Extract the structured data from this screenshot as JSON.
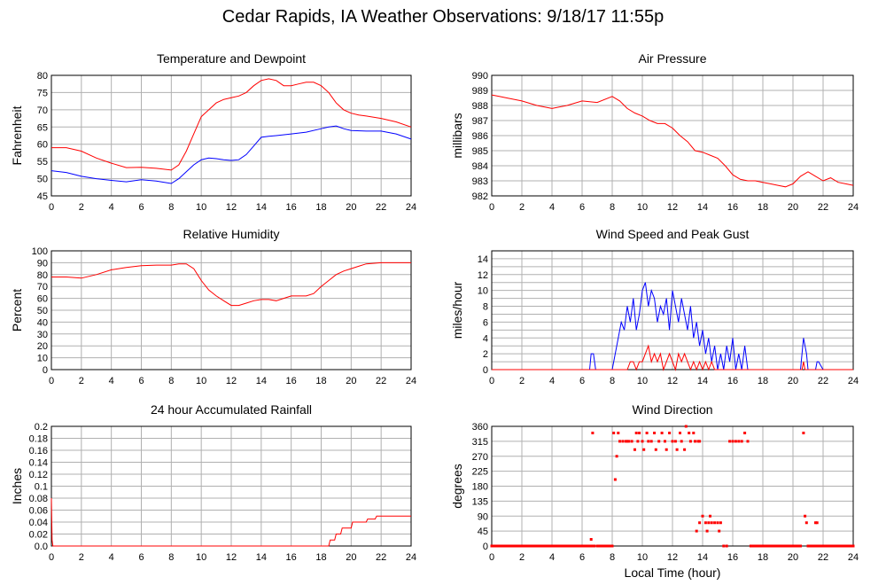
{
  "page": {
    "title": "Cedar Rapids, IA Weather Observations: 9/18/17 11:55p"
  },
  "x_axis_title": "Local Time (hour)",
  "chart_data": [
    {
      "id": "temp",
      "type": "line",
      "title": "Temperature and Dewpoint",
      "ylabel": "Fahrenheit",
      "xlim": [
        0,
        24
      ],
      "ylim": [
        45,
        80
      ],
      "xticks": [
        0,
        2,
        4,
        6,
        8,
        10,
        12,
        14,
        16,
        18,
        20,
        22,
        24
      ],
      "yticks": [
        45,
        50,
        55,
        60,
        65,
        70,
        75,
        80
      ],
      "grid": true,
      "series": [
        {
          "color": "#ff0000",
          "x": [
            0,
            1,
            2,
            3,
            4,
            5,
            6,
            7,
            8,
            8.5,
            9,
            9.5,
            10,
            10.5,
            11,
            11.5,
            12,
            12.5,
            13,
            13.5,
            14,
            14.5,
            15,
            15.5,
            16,
            16.5,
            17,
            17.5,
            18,
            18.5,
            19,
            19.5,
            20,
            20.5,
            21,
            22,
            23,
            24
          ],
          "y": [
            59,
            59,
            58,
            56,
            54.5,
            53.2,
            53.3,
            53,
            52.5,
            54,
            58,
            63,
            68,
            70,
            72,
            73,
            73.5,
            74,
            75,
            77,
            78.5,
            79,
            78.5,
            77,
            77,
            77.5,
            78,
            78,
            77,
            75,
            72,
            70,
            69,
            68.5,
            68.2,
            67.5,
            66.5,
            65
          ]
        },
        {
          "color": "#0000ff",
          "x": [
            0,
            1,
            2,
            3,
            4,
            5,
            6,
            7,
            8,
            8.5,
            9,
            9.5,
            10,
            10.5,
            11,
            11.5,
            12,
            12.5,
            13,
            13.5,
            14,
            14.5,
            15,
            16,
            17,
            18,
            18.5,
            19,
            19.5,
            20,
            21,
            22,
            23,
            24
          ],
          "y": [
            52.3,
            51.8,
            50.7,
            50,
            49.5,
            49.1,
            49.7,
            49.3,
            48.6,
            50,
            52,
            54,
            55.5,
            56,
            55.8,
            55.5,
            55.3,
            55.5,
            57,
            59.5,
            62,
            62.3,
            62.5,
            63,
            63.5,
            64.5,
            65,
            65.3,
            64.5,
            64,
            63.8,
            63.8,
            63,
            61.5
          ]
        }
      ]
    },
    {
      "id": "pressure",
      "type": "line",
      "title": "Air Pressure",
      "ylabel": "millibars",
      "xlim": [
        0,
        24
      ],
      "ylim": [
        982,
        990
      ],
      "xticks": [
        0,
        2,
        4,
        6,
        8,
        10,
        12,
        14,
        16,
        18,
        20,
        22,
        24
      ],
      "yticks": [
        982,
        983,
        984,
        985,
        986,
        987,
        988,
        989,
        990
      ],
      "grid": true,
      "series": [
        {
          "color": "#ff0000",
          "x": [
            0,
            0.5,
            1,
            2,
            3,
            4,
            5,
            6,
            7,
            8,
            8.5,
            9,
            9.5,
            10,
            10.5,
            11,
            11.5,
            12,
            12.5,
            13,
            13.5,
            14,
            14.5,
            15,
            15.5,
            16,
            16.5,
            17,
            17.5,
            18,
            18.5,
            19,
            19.5,
            20,
            20.5,
            21,
            21.5,
            22,
            22.5,
            23,
            23.5,
            24
          ],
          "y": [
            988.7,
            988.6,
            988.5,
            988.3,
            988,
            987.8,
            988,
            988.3,
            988.2,
            988.6,
            988.3,
            987.8,
            987.5,
            987.3,
            987,
            986.8,
            986.8,
            986.5,
            986,
            985.6,
            985,
            984.9,
            984.7,
            984.5,
            984,
            983.4,
            983.1,
            983,
            983,
            982.9,
            982.8,
            982.7,
            982.6,
            982.8,
            983.3,
            983.6,
            983.3,
            983,
            983.2,
            982.9,
            982.8,
            982.7
          ]
        }
      ]
    },
    {
      "id": "humidity",
      "type": "line",
      "title": "Relative Humidity",
      "ylabel": "Percent",
      "xlim": [
        0,
        24
      ],
      "ylim": [
        0,
        100
      ],
      "xticks": [
        0,
        2,
        4,
        6,
        8,
        10,
        12,
        14,
        16,
        18,
        20,
        22,
        24
      ],
      "yticks": [
        0,
        10,
        20,
        30,
        40,
        50,
        60,
        70,
        80,
        90,
        100
      ],
      "grid": true,
      "series": [
        {
          "color": "#ff0000",
          "x": [
            0,
            1,
            2,
            3,
            4,
            5,
            6,
            7,
            8,
            8.5,
            9,
            9.5,
            10,
            10.5,
            11,
            11.5,
            12,
            12.5,
            13,
            13.5,
            14,
            14.5,
            15,
            15.5,
            16,
            16.5,
            17,
            17.5,
            18,
            18.5,
            19,
            19.5,
            20,
            20.5,
            21,
            22,
            23,
            24
          ],
          "y": [
            78,
            78,
            77,
            80,
            84,
            86,
            87.5,
            88,
            88,
            89,
            89,
            85,
            75,
            67,
            62,
            58,
            54,
            54,
            56,
            58,
            59,
            59,
            58,
            60,
            62,
            62,
            62,
            64,
            70,
            75,
            80,
            83,
            85,
            87,
            89,
            90,
            90,
            90
          ]
        }
      ]
    },
    {
      "id": "wind",
      "type": "line",
      "title": "Wind Speed and Peak Gust",
      "ylabel": "miles/hour",
      "xlim": [
        0,
        24
      ],
      "ylim": [
        0,
        15
      ],
      "xticks": [
        0,
        2,
        4,
        6,
        8,
        10,
        12,
        14,
        16,
        18,
        20,
        22,
        24
      ],
      "yticks": [
        0,
        2,
        4,
        6,
        8,
        10,
        12,
        14
      ],
      "grid": true,
      "series": [
        {
          "color": "#0000ff",
          "x": [
            0,
            6.5,
            6.6,
            6.75,
            6.9,
            7,
            7.5,
            8,
            8.2,
            8.4,
            8.6,
            8.8,
            9,
            9.2,
            9.4,
            9.6,
            9.8,
            10,
            10.2,
            10.4,
            10.6,
            10.8,
            11,
            11.2,
            11.4,
            11.6,
            11.8,
            12,
            12.2,
            12.4,
            12.6,
            12.8,
            13,
            13.2,
            13.4,
            13.6,
            13.8,
            14,
            14.2,
            14.4,
            14.6,
            14.8,
            15,
            15.2,
            15.4,
            15.6,
            15.8,
            16,
            16.2,
            16.4,
            16.6,
            16.8,
            17,
            17.2,
            20.5,
            20.7,
            20.9,
            21,
            21.5,
            21.6,
            21.7,
            22,
            24
          ],
          "y": [
            0,
            0,
            2,
            2,
            0,
            0,
            0,
            0,
            2,
            4,
            6,
            5,
            8,
            6,
            9,
            5,
            7,
            10,
            11,
            8,
            10,
            9,
            6,
            8,
            7,
            9,
            5,
            10,
            8,
            6,
            9,
            7,
            5,
            8,
            4,
            6,
            3,
            5,
            2,
            4,
            1,
            3,
            0,
            2,
            0,
            3,
            1,
            4,
            0,
            2,
            0,
            3,
            0,
            0,
            0,
            4,
            2,
            0,
            0,
            1,
            1,
            0,
            0
          ]
        },
        {
          "color": "#ff0000",
          "x": [
            0,
            9,
            9.2,
            9.4,
            9.6,
            9.8,
            10,
            10.2,
            10.4,
            10.6,
            10.8,
            11,
            11.2,
            11.4,
            11.6,
            11.8,
            12,
            12.2,
            12.4,
            12.6,
            12.8,
            13,
            13.2,
            13.4,
            13.6,
            13.8,
            14,
            14.2,
            14.4,
            14.6,
            14.8,
            15,
            15.2,
            20.6,
            20.7,
            20.8,
            21,
            24
          ],
          "y": [
            0,
            0,
            1,
            1,
            0,
            1,
            1,
            2,
            3,
            1,
            2,
            1,
            2,
            0,
            1,
            2,
            1,
            0,
            2,
            1,
            2,
            1,
            0,
            1,
            0,
            1,
            0,
            1,
            0,
            1,
            0,
            0,
            0,
            0,
            1,
            0,
            0,
            0
          ]
        }
      ]
    },
    {
      "id": "rain",
      "type": "line",
      "title": "24 hour Accumulated Rainfall",
      "ylabel": "Inches",
      "xlim": [
        0,
        24
      ],
      "ylim": [
        0,
        0.2
      ],
      "xticks": [
        0,
        2,
        4,
        6,
        8,
        10,
        12,
        14,
        16,
        18,
        20,
        22,
        24
      ],
      "yticks": [
        0,
        0.02,
        0.04,
        0.06,
        0.08,
        0.1,
        0.12,
        0.14,
        0.16,
        0.18,
        0.2
      ],
      "ytick_labels": [
        "0.0",
        "0.02",
        "0.04",
        "0.06",
        "0.08",
        "0.1",
        "0.12",
        "0.14",
        "0.16",
        "0.18",
        "0.2"
      ],
      "grid": true,
      "series": [
        {
          "color": "#ff0000",
          "x": [
            0,
            0.05,
            0.1,
            18.5,
            18.6,
            18.9,
            19.0,
            19.3,
            19.4,
            20.0,
            20.1,
            21.0,
            21.1,
            21.6,
            21.7,
            24
          ],
          "y": [
            0.08,
            0.01,
            0,
            0,
            0.01,
            0.01,
            0.02,
            0.02,
            0.03,
            0.03,
            0.04,
            0.04,
            0.045,
            0.045,
            0.05,
            0.05
          ]
        }
      ]
    },
    {
      "id": "direction",
      "type": "scatter",
      "title": "Wind Direction",
      "ylabel": "degrees",
      "xlim": [
        0,
        24
      ],
      "ylim": [
        0,
        360
      ],
      "xticks": [
        0,
        2,
        4,
        6,
        8,
        10,
        12,
        14,
        16,
        18,
        20,
        22,
        24
      ],
      "yticks": [
        0,
        45,
        90,
        135,
        180,
        225,
        270,
        315,
        360
      ],
      "grid": true,
      "series": [
        {
          "color": "#ff0000",
          "points": [
            [
              6.6,
              20
            ],
            [
              6.7,
              340
            ],
            [
              8.1,
              340
            ],
            [
              8.2,
              200
            ],
            [
              8.3,
              270
            ],
            [
              8.4,
              340
            ],
            [
              8.5,
              315
            ],
            [
              8.7,
              315
            ],
            [
              8.9,
              315
            ],
            [
              9.0,
              315
            ],
            [
              9.1,
              315
            ],
            [
              9.3,
              315
            ],
            [
              9.5,
              290
            ],
            [
              9.6,
              340
            ],
            [
              9.7,
              315
            ],
            [
              9.8,
              340
            ],
            [
              10.0,
              315
            ],
            [
              10.1,
              290
            ],
            [
              10.3,
              340
            ],
            [
              10.4,
              315
            ],
            [
              10.6,
              315
            ],
            [
              10.8,
              340
            ],
            [
              10.9,
              290
            ],
            [
              11.1,
              315
            ],
            [
              11.3,
              340
            ],
            [
              11.5,
              315
            ],
            [
              11.6,
              290
            ],
            [
              11.8,
              340
            ],
            [
              12.0,
              315
            ],
            [
              12.2,
              315
            ],
            [
              12.3,
              290
            ],
            [
              12.5,
              340
            ],
            [
              12.6,
              315
            ],
            [
              12.8,
              290
            ],
            [
              12.9,
              360
            ],
            [
              13.1,
              340
            ],
            [
              13.2,
              315
            ],
            [
              13.4,
              340
            ],
            [
              13.5,
              315
            ],
            [
              13.7,
              315
            ],
            [
              13.8,
              315
            ],
            [
              13.6,
              45
            ],
            [
              13.8,
              70
            ],
            [
              14.0,
              90
            ],
            [
              14.2,
              70
            ],
            [
              14.3,
              45
            ],
            [
              14.4,
              70
            ],
            [
              14.5,
              90
            ],
            [
              14.6,
              70
            ],
            [
              14.8,
              70
            ],
            [
              15.0,
              70
            ],
            [
              15.1,
              45
            ],
            [
              15.2,
              70
            ],
            [
              15.4,
              0
            ],
            [
              15.6,
              0
            ],
            [
              15.8,
              315
            ],
            [
              16.0,
              315
            ],
            [
              16.2,
              315
            ],
            [
              16.4,
              315
            ],
            [
              16.6,
              315
            ],
            [
              16.8,
              340
            ],
            [
              17.0,
              315
            ],
            [
              20.7,
              340
            ],
            [
              20.8,
              90
            ],
            [
              20.9,
              70
            ],
            [
              21.5,
              70
            ],
            [
              21.6,
              70
            ]
          ],
          "baseline_ranges": [
            [
              0,
              6.8
            ],
            [
              7.0,
              8.0
            ],
            [
              17.2,
              20.5
            ],
            [
              21.0,
              24
            ]
          ],
          "baseline_value": 0
        }
      ]
    }
  ]
}
